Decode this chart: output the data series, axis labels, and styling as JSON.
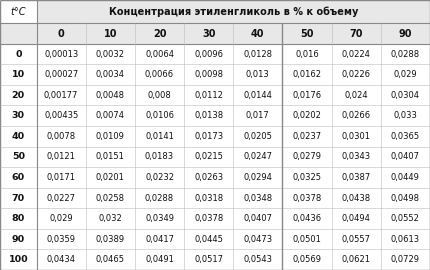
{
  "title": "Концентрация этиленгликоль в % к объему",
  "col_headers": [
    "0",
    "10",
    "20",
    "30",
    "40",
    "50",
    "70",
    "90"
  ],
  "row_headers": [
    "0",
    "10",
    "20",
    "30",
    "40",
    "50",
    "60",
    "70",
    "80",
    "90",
    "100"
  ],
  "row_label": "t°C",
  "table_data": [
    [
      "0,00013",
      "0,0032",
      "0,0064",
      "0,0096",
      "0,0128",
      "0,016",
      "0,0224",
      "0,0288"
    ],
    [
      "0,00027",
      "0,0034",
      "0,0066",
      "0,0098",
      "0,013",
      "0,0162",
      "0,0226",
      "0,029"
    ],
    [
      "0,00177",
      "0,0048",
      "0,008",
      "0,0112",
      "0,0144",
      "0,0176",
      "0,024",
      "0,0304"
    ],
    [
      "0,00435",
      "0,0074",
      "0,0106",
      "0,0138",
      "0,017",
      "0,0202",
      "0,0266",
      "0,033"
    ],
    [
      "0,0078",
      "0,0109",
      "0,0141",
      "0,0173",
      "0,0205",
      "0,0237",
      "0,0301",
      "0,0365"
    ],
    [
      "0,0121",
      "0,0151",
      "0,0183",
      "0,0215",
      "0,0247",
      "0,0279",
      "0,0343",
      "0,0407"
    ],
    [
      "0,0171",
      "0,0201",
      "0,0232",
      "0,0263",
      "0,0294",
      "0,0325",
      "0,0387",
      "0,0449"
    ],
    [
      "0,0227",
      "0,0258",
      "0,0288",
      "0,0318",
      "0,0348",
      "0,0378",
      "0,0438",
      "0,0498"
    ],
    [
      "0,029",
      "0,032",
      "0,0349",
      "0,0378",
      "0,0407",
      "0,0436",
      "0,0494",
      "0,0552"
    ],
    [
      "0,0359",
      "0,0389",
      "0,0417",
      "0,0445",
      "0,0473",
      "0,0501",
      "0,0557",
      "0,0613"
    ],
    [
      "0,0434",
      "0,0465",
      "0,0491",
      "0,0517",
      "0,0543",
      "0,0569",
      "0,0621",
      "0,0729"
    ]
  ],
  "bg_color": "#ffffff",
  "header_bg": "#e8e8e8",
  "line_color": "#bbbbbb",
  "thick_line_color": "#888888",
  "text_color": "#111111",
  "bold_col_after": 5
}
